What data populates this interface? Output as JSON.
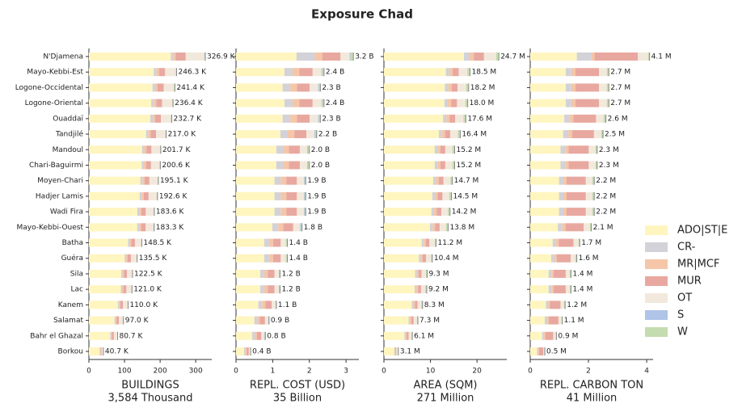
{
  "title": "Exposure Chad",
  "legend": {
    "position": "right",
    "entries": [
      {
        "name": "ADO|ST|E",
        "color": "#fff5bf"
      },
      {
        "name": "CR-",
        "color": "#d2d2d8"
      },
      {
        "name": "MR|MCF",
        "color": "#f5c6a8"
      },
      {
        "name": "MUR",
        "color": "#e8a8a0"
      },
      {
        "name": "OT",
        "color": "#f2e9dc"
      },
      {
        "name": "S",
        "color": "#b0c4e8"
      },
      {
        "name": "W",
        "color": "#c5dbb0"
      }
    ]
  },
  "chart_data": [
    {
      "type": "bar",
      "orientation": "horizontal",
      "xlabel": "BUILDINGS",
      "xlabel_note": "3,584 Thousand",
      "categories": [
        "N'Djamena",
        "Mayo-Kebbi-Est",
        "Logone-Occidental",
        "Logone-Oriental",
        "Ouaddaï",
        "Tandjilé",
        "Mandoul",
        "Chari-Baguirmi",
        "Moyen-Chari",
        "Hadjer Lamis",
        "Wadi Fira",
        "Mayo-Kebbi-Ouest",
        "Batha",
        "Guéra",
        "Sila",
        "Lac",
        "Kanem",
        "Salamat",
        "Bahr el Ghazal",
        "Borkou"
      ],
      "xlim": [
        0,
        345
      ],
      "xticks": [
        0,
        100,
        200,
        300
      ],
      "series": [
        {
          "values": [
            230,
            182,
            178.6,
            175,
            172.2,
            160.6,
            149.3,
            148.4,
            144.4,
            142.5,
            135.9,
            135.6,
            109.9,
            100.3,
            90.7,
            89.5,
            81.4,
            71.8,
            59.7,
            30.1
          ]
        },
        {
          "values": [
            8,
            7.4,
            7.2,
            7.1,
            7.0,
            6.5,
            6.1,
            6.0,
            5.9,
            5.8,
            5.5,
            5.5,
            4.5,
            4.1,
            3.7,
            3.6,
            3.3,
            2.9,
            2.4,
            1.2
          ]
        },
        {
          "values": [
            6,
            7.4,
            7.2,
            7.1,
            7.0,
            6.5,
            6.1,
            6.0,
            5.9,
            5.8,
            5.5,
            5.5,
            4.5,
            4.1,
            3.7,
            3.6,
            3.3,
            2.9,
            2.4,
            1.2
          ]
        },
        {
          "values": [
            28,
            17.2,
            16.9,
            16.5,
            16.3,
            15.2,
            14.1,
            14.0,
            13.7,
            13.5,
            12.9,
            12.8,
            10.4,
            9.5,
            8.6,
            8.5,
            7.7,
            6.8,
            5.6,
            2.8
          ]
        },
        {
          "values": [
            52,
            29.6,
            29.0,
            28.4,
            27.9,
            26.0,
            24.2,
            24.1,
            23.4,
            23.1,
            22.0,
            22.0,
            17.8,
            16.3,
            14.7,
            14.5,
            13.2,
            11.6,
            9.7,
            4.9
          ]
        },
        {
          "values": [
            0.5,
            0,
            0,
            0,
            0,
            0,
            0,
            0,
            0,
            0,
            0,
            0,
            0,
            0,
            0,
            0,
            0,
            0,
            0,
            0
          ]
        },
        {
          "values": [
            2.4,
            2.7,
            2.4,
            2.4,
            2.3,
            2.2,
            2.0,
            2.0,
            2.0,
            1.9,
            1.8,
            1.8,
            1.5,
            1.4,
            1.2,
            1.2,
            1.1,
            1.0,
            0.8,
            0.4
          ]
        }
      ],
      "totals": [
        326.9,
        246.3,
        241.4,
        236.4,
        232.7,
        217.0,
        201.7,
        200.6,
        195.1,
        192.6,
        183.6,
        183.3,
        148.5,
        135.5,
        122.5,
        121.0,
        110.0,
        97.0,
        80.7,
        40.7
      ],
      "total_labels": [
        "326.9 K",
        "246.3 K",
        "241.4 K",
        "236.4 K",
        "232.7 K",
        "217.0 K",
        "201.7 K",
        "200.6 K",
        "195.1 K",
        "192.6 K",
        "183.6 K",
        "183.3 K",
        "148.5 K",
        "135.5 K",
        "122.5 K",
        "121.0 K",
        "110.0 K",
        "97.0 K",
        "80.7 K",
        "40.7 K"
      ]
    },
    {
      "type": "bar",
      "orientation": "horizontal",
      "xlabel": "REPL. COST (USD)",
      "xlabel_note": "35 Billion",
      "xlim": [
        0,
        3.35
      ],
      "xticks": [
        0,
        1,
        2,
        3
      ],
      "series": [
        {
          "values": [
            1.65,
            1.32,
            1.27,
            1.32,
            1.27,
            1.21,
            1.1,
            1.1,
            1.05,
            1.05,
            1.05,
            0.99,
            0.77,
            0.77,
            0.66,
            0.66,
            0.61,
            0.5,
            0.44,
            0.22
          ]
        },
        {
          "values": [
            0.5,
            0.22,
            0.21,
            0.22,
            0.21,
            0.2,
            0.18,
            0.18,
            0.17,
            0.17,
            0.17,
            0.16,
            0.13,
            0.13,
            0.11,
            0.11,
            0.1,
            0.08,
            0.07,
            0.04
          ]
        },
        {
          "values": [
            0.2,
            0.19,
            0.18,
            0.19,
            0.18,
            0.18,
            0.16,
            0.16,
            0.15,
            0.15,
            0.15,
            0.14,
            0.11,
            0.11,
            0.1,
            0.1,
            0.09,
            0.07,
            0.06,
            0.03
          ]
        },
        {
          "values": [
            0.5,
            0.36,
            0.35,
            0.36,
            0.35,
            0.33,
            0.3,
            0.3,
            0.29,
            0.29,
            0.29,
            0.27,
            0.21,
            0.21,
            0.18,
            0.18,
            0.17,
            0.14,
            0.12,
            0.06
          ]
        },
        {
          "values": [
            0.25,
            0.24,
            0.23,
            0.24,
            0.23,
            0.22,
            0.2,
            0.2,
            0.19,
            0.19,
            0.19,
            0.18,
            0.14,
            0.14,
            0.12,
            0.12,
            0.11,
            0.09,
            0.08,
            0.04
          ]
        },
        {
          "values": [
            0.02,
            0.02,
            0.02,
            0.02,
            0.02,
            0.02,
            0.02,
            0.02,
            0.02,
            0.02,
            0.02,
            0.02,
            0.01,
            0.01,
            0.01,
            0.01,
            0.01,
            0.01,
            0.01,
            0
          ]
        },
        {
          "values": [
            0.08,
            0.05,
            0.05,
            0.05,
            0.05,
            0.04,
            0.04,
            0.04,
            0.04,
            0.04,
            0.04,
            0.04,
            0.03,
            0.03,
            0.02,
            0.02,
            0.02,
            0.02,
            0.02,
            0.01
          ]
        }
      ],
      "totals": [
        3.2,
        2.4,
        2.3,
        2.4,
        2.3,
        2.2,
        2.0,
        2.0,
        1.9,
        1.9,
        1.9,
        1.8,
        1.4,
        1.4,
        1.2,
        1.2,
        1.1,
        0.9,
        0.8,
        0.4
      ],
      "total_labels": [
        "3.2 B",
        "2.4 B",
        "2.3 B",
        "2.4 B",
        "2.3 B",
        "2.2 B",
        "2.0 B",
        "2.0 B",
        "1.9 B",
        "1.9 B",
        "1.9 B",
        "1.8 B",
        "1.4 B",
        "1.4 B",
        "1.2 B",
        "1.2 B",
        "1.1 B",
        "0.9 B",
        "0.8 B",
        "0.4 B"
      ]
    },
    {
      "type": "bar",
      "orientation": "horizontal",
      "xlabel": "AREA (SQM)",
      "xlabel_note": "271 Million",
      "xlim": [
        0,
        26.4
      ],
      "xticks": [
        0,
        10,
        20
      ],
      "series": [
        {
          "values": [
            17.2,
            13.3,
            13.1,
            13.0,
            12.7,
            11.8,
            10.9,
            10.9,
            10.6,
            10.4,
            10.2,
            9.9,
            8.1,
            7.5,
            6.7,
            6.6,
            6.0,
            5.3,
            4.4,
            2.2
          ]
        },
        {
          "values": [
            1.2,
            0.74,
            0.73,
            0.72,
            0.7,
            0.66,
            0.61,
            0.61,
            0.59,
            0.58,
            0.57,
            0.55,
            0.45,
            0.42,
            0.37,
            0.37,
            0.33,
            0.29,
            0.24,
            0.12
          ]
        },
        {
          "values": [
            0.9,
            0.74,
            0.73,
            0.72,
            0.7,
            0.66,
            0.61,
            0.61,
            0.59,
            0.58,
            0.57,
            0.55,
            0.45,
            0.42,
            0.37,
            0.37,
            0.33,
            0.29,
            0.24,
            0.12
          ]
        },
        {
          "values": [
            2.2,
            1.3,
            1.27,
            1.26,
            1.23,
            1.15,
            1.06,
            1.06,
            1.03,
            1.02,
            0.99,
            0.97,
            0.78,
            0.73,
            0.65,
            0.64,
            0.58,
            0.51,
            0.43,
            0.22
          ]
        },
        {
          "values": [
            2.6,
            1.85,
            1.82,
            1.8,
            1.76,
            1.64,
            1.52,
            1.52,
            1.47,
            1.45,
            1.42,
            1.38,
            1.12,
            1.04,
            0.93,
            0.92,
            0.83,
            0.73,
            0.61,
            0.31
          ]
        },
        {
          "values": [
            0,
            0,
            0,
            0,
            0,
            0,
            0,
            0,
            0,
            0,
            0,
            0,
            0,
            0,
            0,
            0,
            0,
            0,
            0,
            0
          ]
        },
        {
          "values": [
            0.6,
            0.56,
            0.55,
            0.54,
            0.53,
            0.49,
            0.46,
            0.46,
            0.44,
            0.44,
            0.43,
            0.41,
            0.34,
            0.31,
            0.28,
            0.28,
            0.25,
            0.22,
            0.18,
            0.09
          ]
        }
      ],
      "totals": [
        24.7,
        18.5,
        18.2,
        18.0,
        17.6,
        16.4,
        15.2,
        15.2,
        14.7,
        14.5,
        14.2,
        13.8,
        11.2,
        10.4,
        9.3,
        9.2,
        8.3,
        7.3,
        6.1,
        3.1
      ],
      "total_labels": [
        "24.7 M",
        "18.5 M",
        "18.2 M",
        "18.0 M",
        "17.6 M",
        "16.4 M",
        "15.2 M",
        "15.2 M",
        "14.7 M",
        "14.5 M",
        "14.2 M",
        "13.8 M",
        "11.2 M",
        "10.4 M",
        "9.3 M",
        "9.2 M",
        "8.3 M",
        "7.3 M",
        "6.1 M",
        "3.1 M"
      ]
    },
    {
      "type": "bar",
      "orientation": "horizontal",
      "xlabel": "REPL. CARBON TON",
      "xlabel_note": "41 Million",
      "xlim": [
        0,
        4.22
      ],
      "xticks": [
        0,
        2,
        4
      ],
      "series": [
        {
          "values": [
            1.6,
            1.22,
            1.22,
            1.22,
            1.17,
            1.13,
            1.04,
            1.04,
            0.99,
            0.99,
            0.99,
            0.95,
            0.77,
            0.72,
            0.63,
            0.63,
            0.54,
            0.5,
            0.41,
            0.23
          ]
        },
        {
          "values": [
            0.5,
            0.19,
            0.19,
            0.19,
            0.18,
            0.18,
            0.16,
            0.16,
            0.15,
            0.15,
            0.15,
            0.15,
            0.12,
            0.11,
            0.1,
            0.1,
            0.08,
            0.08,
            0.06,
            0.04
          ]
        },
        {
          "values": [
            0.1,
            0.14,
            0.14,
            0.14,
            0.13,
            0.13,
            0.12,
            0.12,
            0.11,
            0.11,
            0.11,
            0.11,
            0.09,
            0.08,
            0.07,
            0.07,
            0.06,
            0.06,
            0.05,
            0.03
          ]
        },
        {
          "values": [
            1.5,
            0.81,
            0.81,
            0.81,
            0.78,
            0.75,
            0.69,
            0.69,
            0.66,
            0.66,
            0.66,
            0.63,
            0.51,
            0.48,
            0.42,
            0.42,
            0.36,
            0.33,
            0.27,
            0.15
          ]
        },
        {
          "values": [
            0.35,
            0.27,
            0.27,
            0.27,
            0.26,
            0.25,
            0.23,
            0.23,
            0.22,
            0.22,
            0.22,
            0.21,
            0.17,
            0.16,
            0.14,
            0.14,
            0.12,
            0.11,
            0.09,
            0.05
          ]
        },
        {
          "values": [
            0,
            0,
            0,
            0,
            0,
            0,
            0,
            0,
            0,
            0,
            0,
            0,
            0,
            0,
            0,
            0,
            0,
            0,
            0,
            0
          ]
        },
        {
          "values": [
            0.05,
            0.08,
            0.08,
            0.08,
            0.08,
            0.08,
            0.07,
            0.07,
            0.07,
            0.07,
            0.07,
            0.06,
            0.05,
            0.05,
            0.04,
            0.04,
            0.04,
            0.03,
            0.03,
            0.02
          ]
        }
      ],
      "totals": [
        4.1,
        2.7,
        2.7,
        2.7,
        2.6,
        2.5,
        2.3,
        2.3,
        2.2,
        2.2,
        2.2,
        2.1,
        1.7,
        1.6,
        1.4,
        1.4,
        1.2,
        1.1,
        0.9,
        0.5
      ],
      "total_labels": [
        "4.1 M",
        "2.7 M",
        "2.7 M",
        "2.7 M",
        "2.6 M",
        "2.5 M",
        "2.3 M",
        "2.3 M",
        "2.2 M",
        "2.2 M",
        "2.2 M",
        "2.1 M",
        "1.7 M",
        "1.6 M",
        "1.4 M",
        "1.4 M",
        "1.2 M",
        "1.1 M",
        "0.9 M",
        "0.5 M"
      ]
    }
  ]
}
